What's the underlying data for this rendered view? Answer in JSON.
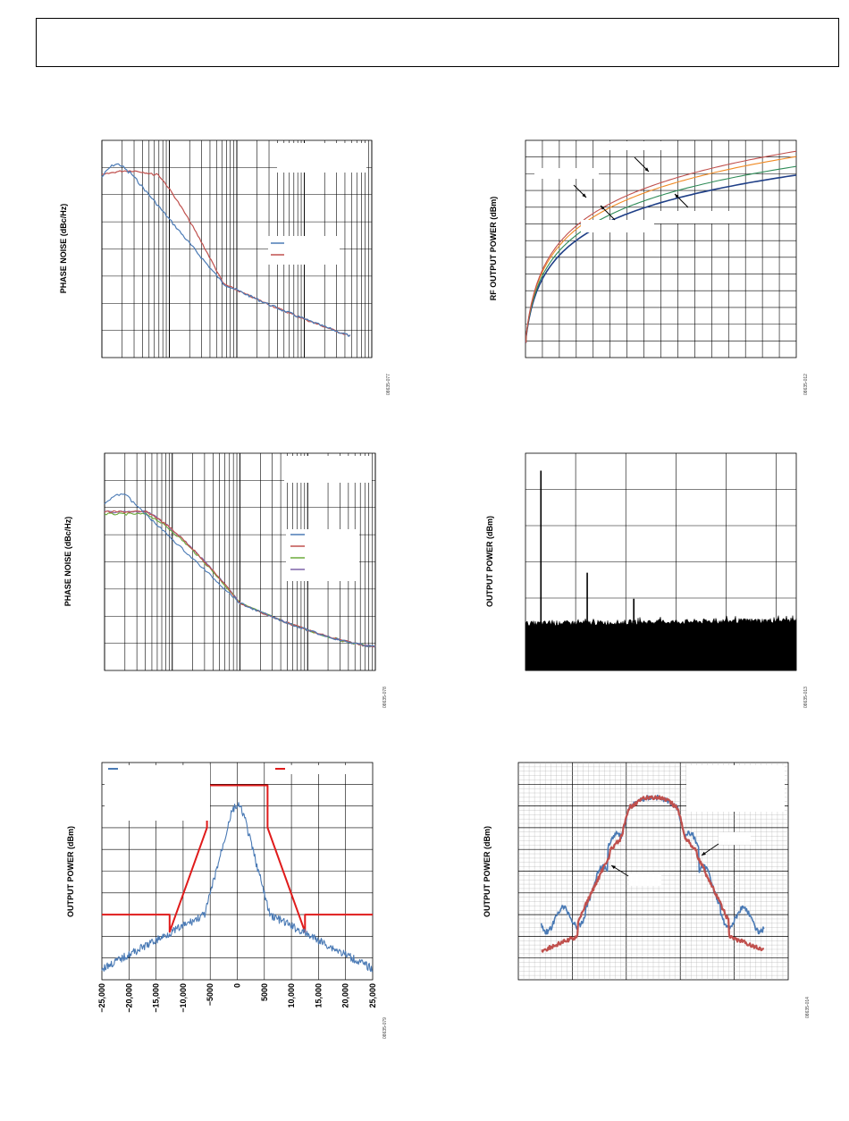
{
  "page": {
    "header_title": ""
  },
  "figures": [
    {
      "id": "fig1",
      "ylabel": "PHASE NOISE (dBc/Hz)",
      "fig_id": "08635-077"
    },
    {
      "id": "fig2",
      "ylabel": "RF OUTPUT POWER (dBm)",
      "fig_id": "08635-012"
    },
    {
      "id": "fig3",
      "ylabel": "PHASE NOISE (dBc/Hz)",
      "fig_id": "08635-078"
    },
    {
      "id": "fig4",
      "ylabel": "OUTPUT POWER (dBm)",
      "fig_id": "08635-013"
    },
    {
      "id": "fig5",
      "ylabel": "OUTPUT POWER (dBm)",
      "fig_id": "08635-079"
    },
    {
      "id": "fig6",
      "ylabel": "OUTPUT POWER (dBm)",
      "fig_id": "08635-014"
    }
  ],
  "colors": {
    "blue": "#4a7ab5",
    "red": "#c0504d",
    "green": "#6aaa3a",
    "purple": "#7e62a8",
    "orange": "#f08a24",
    "navy": "#1f3f87",
    "mask": "#e01b1b",
    "darkgreen": "#2e8b57"
  },
  "chart_data": [
    {
      "type": "line",
      "title": "",
      "ylabel": "PHASE NOISE (dBc/Hz)",
      "xscale": "log",
      "grid": true,
      "x": [
        1,
        1.5,
        2,
        3,
        5,
        10,
        20,
        50,
        100
      ],
      "series": [
        {
          "values": [
            -92,
            -91,
            -95,
            -103,
            -110,
            -118,
            -122,
            -128,
            -131
          ]
        },
        {
          "values": [
            -92,
            -91,
            -93,
            -98,
            -107,
            -117,
            -122,
            -128,
            -131
          ]
        }
      ]
    },
    {
      "type": "line",
      "title": "",
      "ylabel": "RF OUTPUT POWER (dBm)",
      "grid": true,
      "x": [
        0,
        0.02,
        0.05,
        0.1,
        0.2,
        0.3,
        0.5,
        0.7,
        1.0
      ],
      "series": [
        {
          "values": [
            0,
            28,
            42,
            52,
            62,
            67,
            73,
            77,
            80
          ]
        },
        {
          "values": [
            0,
            30,
            45,
            55,
            65,
            70,
            76,
            80,
            83
          ]
        },
        {
          "values": [
            0,
            32,
            48,
            58,
            68,
            73,
            79,
            83,
            86
          ]
        },
        {
          "values": [
            0,
            34,
            51,
            61,
            71,
            76,
            82,
            86,
            89
          ]
        }
      ]
    },
    {
      "type": "line",
      "title": "",
      "ylabel": "PHASE NOISE (dBc/Hz)",
      "xscale": "log",
      "grid": true,
      "x": [
        1,
        1.5,
        2,
        3,
        5,
        10,
        20,
        50,
        100
      ],
      "series": [
        {
          "values": [
            -92,
            -91,
            -96,
            -103,
            -110,
            -118,
            -122,
            -128,
            -131
          ]
        },
        {
          "values": [
            -94,
            -93,
            -94,
            -99,
            -108,
            -118,
            -122,
            -128,
            -131
          ]
        },
        {
          "values": [
            -94,
            -94,
            -94,
            -98,
            -107,
            -118,
            -122,
            -128,
            -131
          ]
        },
        {
          "values": [
            -94,
            -94,
            -94,
            -97,
            -106,
            -118,
            -122,
            -128,
            -131
          ]
        }
      ]
    },
    {
      "type": "line",
      "title": "",
      "ylabel": "OUTPUT POWER (dBm)",
      "grid": true,
      "x": [
        0,
        0.06,
        0.07,
        0.08,
        0.22,
        0.23,
        0.24,
        0.4,
        0.41,
        0.42,
        1.0
      ],
      "series": [
        {
          "values": [
            -90,
            -90,
            0,
            -90,
            -90,
            -75,
            -90,
            -90,
            -80,
            -90,
            -90
          ]
        }
      ]
    },
    {
      "type": "line",
      "title": "",
      "ylabel": "OUTPUT POWER (dBm)",
      "grid": true,
      "x": [
        -25000,
        -20000,
        -15000,
        -10000,
        -5000,
        0,
        5000,
        10000,
        15000,
        20000,
        25000
      ],
      "xlim": [
        -25000,
        25000
      ],
      "xticks": [
        "−25,000",
        "−20,000",
        "−15,000",
        "−10,000",
        "−5000",
        "0",
        "5000",
        "10,000",
        "15,000",
        "20,000",
        "25,000"
      ],
      "series": [
        {
          "values": [
            -98,
            -97,
            -95,
            -92,
            -80,
            -45,
            -80,
            -90,
            -95,
            -97,
            -98
          ]
        },
        {
          "values": [
            -70,
            -70,
            -70,
            -60,
            -38,
            -38,
            -38,
            -60,
            -70,
            -70,
            -70
          ]
        }
      ]
    },
    {
      "type": "line",
      "title": "",
      "ylabel": "OUTPUT POWER (dBm)",
      "grid": true,
      "x": [
        0,
        0.1,
        0.2,
        0.3,
        0.4,
        0.5,
        0.6,
        0.7,
        0.8,
        0.9,
        1.0
      ],
      "series": [
        {
          "values": [
            -80,
            -75,
            -72,
            -65,
            -50,
            -40,
            -50,
            -65,
            -72,
            -75,
            -80
          ]
        },
        {
          "values": [
            -85,
            -83,
            -80,
            -68,
            -52,
            -40,
            -52,
            -68,
            -80,
            -83,
            -85
          ]
        }
      ]
    }
  ]
}
